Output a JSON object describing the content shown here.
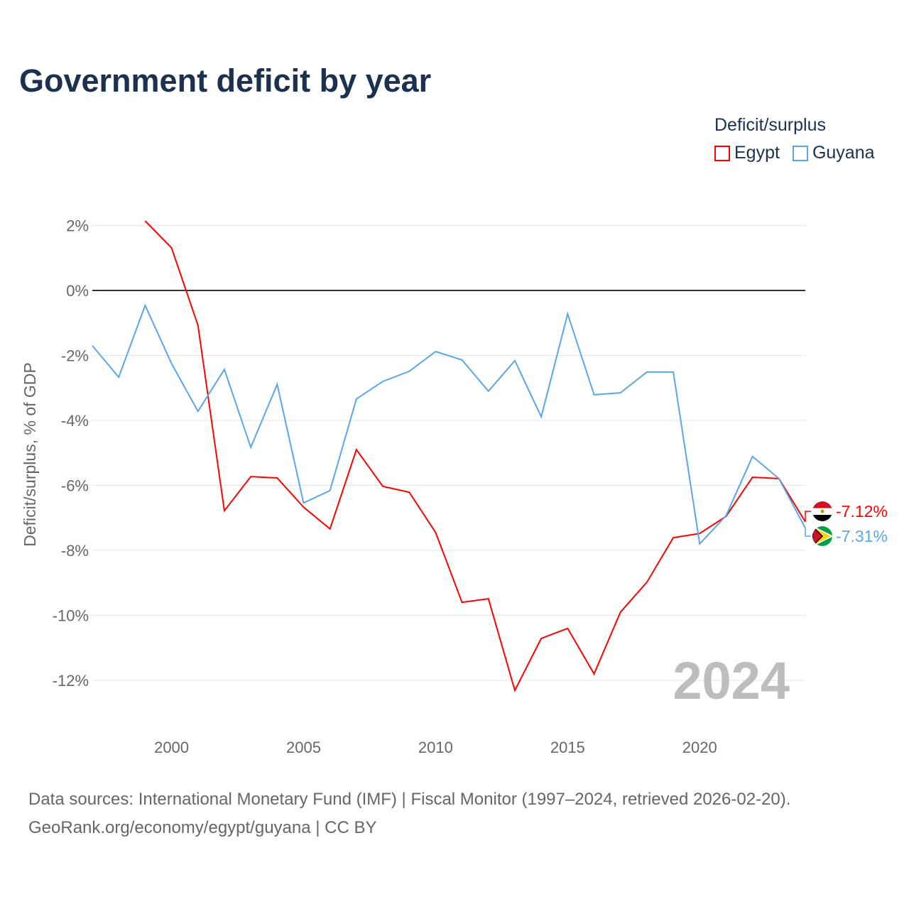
{
  "title": "Government deficit by year",
  "legend": {
    "title": "Deficit/surplus",
    "items": [
      {
        "label": "Egypt",
        "color": "#ff0000"
      },
      {
        "label": "Guyana",
        "color": "#5ba6e8"
      }
    ]
  },
  "footer": {
    "line1": "Data sources: International Monetary Fund (IMF) | Fiscal Monitor (1997–2024, retrieved 2026-02-20).",
    "line2": "GeoRank.org/economy/egypt/guyana | CC BY"
  },
  "chart_data": {
    "type": "line",
    "title": "Government deficit by year",
    "xlabel": "",
    "ylabel": "Deficit/surplus, % of GDP",
    "xlim": [
      1997,
      2024
    ],
    "ylim": [
      -13,
      2.5
    ],
    "yticks": [
      2,
      0,
      -2,
      -4,
      -6,
      -8,
      -10,
      -12
    ],
    "ytick_labels": [
      "2%",
      "0%",
      "-2%",
      "-4%",
      "-6%",
      "-8%",
      "-10%",
      "-12%"
    ],
    "xticks": [
      2000,
      2005,
      2010,
      2015,
      2020
    ],
    "xtick_labels": [
      "2000",
      "2005",
      "2010",
      "2015",
      "2020"
    ],
    "year_watermark": "2024",
    "legend_position": "top-right",
    "series": [
      {
        "name": "Egypt",
        "color": "#ff0000",
        "end_label": "-7.12%",
        "x": [
          1999,
          2000,
          2001,
          2002,
          2003,
          2004,
          2005,
          2006,
          2007,
          2008,
          2009,
          2010,
          2011,
          2012,
          2013,
          2014,
          2015,
          2016,
          2017,
          2018,
          2019,
          2020,
          2021,
          2022,
          2023,
          2024
        ],
        "values": [
          2.14,
          1.31,
          -1.07,
          -6.78,
          -5.73,
          -5.77,
          -6.67,
          -7.34,
          -4.9,
          -6.03,
          -6.21,
          -7.45,
          -9.6,
          -9.49,
          -12.31,
          -10.71,
          -10.4,
          -11.8,
          -9.9,
          -8.98,
          -7.61,
          -7.48,
          -6.95,
          -5.75,
          -5.79,
          -7.12
        ]
      },
      {
        "name": "Guyana",
        "color": "#5ba6e8",
        "end_label": "-7.31%",
        "x": [
          1997,
          1998,
          1999,
          2000,
          2001,
          2002,
          2003,
          2004,
          2005,
          2006,
          2007,
          2008,
          2009,
          2010,
          2011,
          2012,
          2013,
          2014,
          2015,
          2016,
          2017,
          2018,
          2019,
          2020,
          2021,
          2022,
          2023,
          2024
        ],
        "values": [
          -1.7,
          -2.67,
          -0.46,
          -2.25,
          -3.72,
          -2.43,
          -4.83,
          -2.89,
          -6.54,
          -6.16,
          -3.34,
          -2.8,
          -2.49,
          -1.88,
          -2.14,
          -3.1,
          -2.16,
          -3.89,
          -0.72,
          -3.21,
          -3.15,
          -2.51,
          -2.51,
          -7.8,
          -6.93,
          -5.11,
          -5.79,
          -7.31
        ]
      }
    ]
  }
}
